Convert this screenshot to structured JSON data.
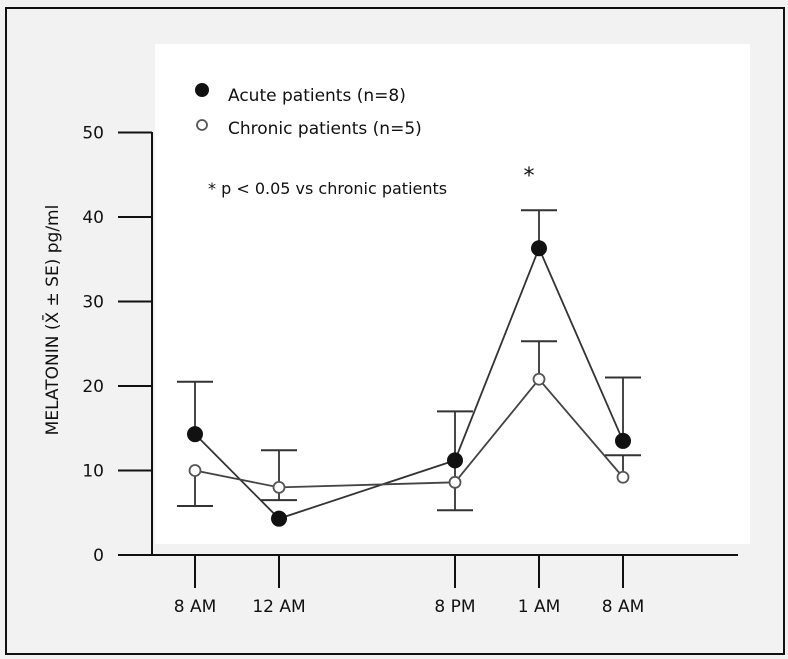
{
  "chart_data": {
    "type": "line",
    "title": "",
    "xlabel": "",
    "ylabel": "MELATONIN (X̄ ± SE) pg/ml",
    "categories": [
      "8 AM",
      "12 AM",
      "8  PM",
      "1 AM",
      "8 AM"
    ],
    "category_positions": [
      0,
      1,
      3,
      4,
      5
    ],
    "ylim": [
      0,
      50
    ],
    "yticks": [
      0,
      10,
      20,
      30,
      40,
      50
    ],
    "grid": false,
    "legend_position": "top-left",
    "series": [
      {
        "name": "Acute patients (n=8)",
        "marker": "filled-circle",
        "color": "#111111",
        "values": [
          14.3,
          4.3,
          11.2,
          36.3,
          13.5
        ],
        "se_upper": [
          20.5,
          null,
          17.0,
          40.8,
          21.0
        ],
        "se_lower": [
          null,
          null,
          5.3,
          null,
          null
        ]
      },
      {
        "name": "Chronic patients (n=5)",
        "marker": "open-circle",
        "color": "#555555",
        "values": [
          10.0,
          8.0,
          8.6,
          20.8,
          9.2
        ],
        "se_upper": [
          null,
          12.4,
          null,
          25.3,
          11.8
        ],
        "se_lower": [
          5.8,
          6.5,
          null,
          null,
          null
        ]
      }
    ],
    "annotations": [
      {
        "text": "*",
        "category_index": 3,
        "y": 45
      },
      {
        "text": "* p < 0.05 vs chronic patients"
      }
    ]
  }
}
